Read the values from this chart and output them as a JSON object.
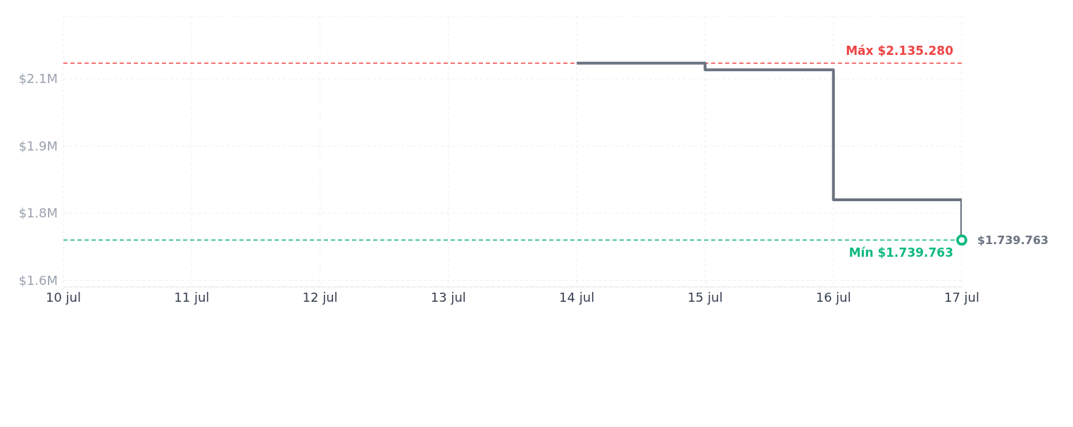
{
  "chart_data": {
    "type": "step",
    "x": [
      "--07-14",
      "--07-15",
      "--07-16",
      "--07-17"
    ],
    "series": [
      {
        "color": "#6b7280",
        "values": [
          2135280,
          2120000,
          1830000,
          1739763
        ]
      }
    ],
    "xlim": [
      "--07-10",
      "--07-17"
    ],
    "xticks": [
      {
        "value": "--07-10",
        "label": "10 jul"
      },
      {
        "value": "--07-11",
        "label": "11 jul"
      },
      {
        "value": "--07-12",
        "label": "12 jul"
      },
      {
        "value": "--07-13",
        "label": "13 jul"
      },
      {
        "value": "--07-14",
        "label": "14 jul"
      },
      {
        "value": "--07-15",
        "label": "15 jul"
      },
      {
        "value": "--07-16",
        "label": "16 jul"
      },
      {
        "value": "--07-17",
        "label": "17 jul"
      }
    ],
    "ylim": [
      1635000,
      2240000
    ],
    "yticks": [
      {
        "value": 1650000,
        "label": "$1.6M"
      },
      {
        "value": 1800000,
        "label": "$1.8M"
      },
      {
        "value": 1950000,
        "label": "$1.9M"
      },
      {
        "value": 2100000,
        "label": "$2.1M"
      }
    ],
    "ref_lines": [
      {
        "axis": "y",
        "value": 2135280,
        "label": "Máx $2.135.280",
        "color": "#ef4444",
        "line_style": "dashed"
      },
      {
        "axis": "y",
        "value": 1739763,
        "label": "Mín $1.739.763",
        "color": "#10b981",
        "line_style": "dashed"
      }
    ],
    "annotations": [
      {
        "text": "$1.739.763",
        "x": "--07-17",
        "y": 1739763
      }
    ],
    "grid": true,
    "marker": "none",
    "line_style": "solid"
  }
}
